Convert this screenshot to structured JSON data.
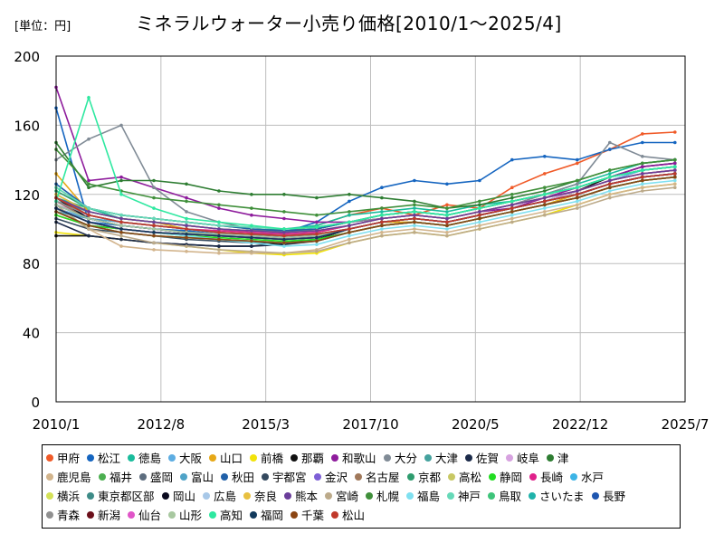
{
  "unit_label": "[単位：円]",
  "chart_data": {
    "type": "line",
    "title": "ミネラルウォーター小売り価格[2010/1～2025/4]",
    "xlabel": "",
    "ylabel": "",
    "x_ticks": [
      "2010/1",
      "2012/8",
      "2015/3",
      "2017/10",
      "2020/5",
      "2022/12",
      "2025/7"
    ],
    "xlim": [
      "2010/1",
      "2025/7"
    ],
    "ylim": [
      0,
      200
    ],
    "y_ticks": [
      0,
      40,
      80,
      120,
      160,
      200
    ],
    "grid": true,
    "legend_position": "bottom",
    "series": [
      {
        "name": "甲府",
        "color": "#f05a28",
        "values": [
          108,
          102,
          100,
          98,
          97,
          96,
          97,
          98,
          102,
          108,
          112,
          108,
          114,
          112,
          124,
          132,
          138,
          146,
          155,
          156
        ]
      },
      {
        "name": "松江",
        "color": "#1565c0",
        "values": [
          170,
          104,
          102,
          100,
          99,
          97,
          96,
          98,
          104,
          116,
          124,
          128,
          126,
          128,
          140,
          142,
          140,
          146,
          150,
          150
        ]
      },
      {
        "name": "徳島",
        "color": "#1abc9c",
        "values": [
          118,
          112,
          106,
          104,
          102,
          100,
          99,
          100,
          102,
          108,
          110,
          112,
          110,
          114,
          116,
          120,
          126,
          132,
          138,
          140
        ]
      },
      {
        "name": "大阪",
        "color": "#5dade2",
        "values": [
          112,
          106,
          104,
          102,
          100,
          98,
          97,
          98,
          100,
          104,
          106,
          108,
          106,
          110,
          114,
          118,
          122,
          128,
          134,
          136
        ]
      },
      {
        "name": "山口",
        "color": "#e6a817",
        "values": [
          132,
          110,
          106,
          104,
          100,
          98,
          96,
          95,
          96,
          100,
          104,
          104,
          102,
          106,
          110,
          114,
          120,
          126,
          130,
          132
        ]
      },
      {
        "name": "前橋",
        "color": "#f2e30a",
        "values": [
          98,
          96,
          94,
          92,
          90,
          88,
          86,
          85,
          86,
          92,
          96,
          98,
          96,
          100,
          104,
          108,
          114,
          120,
          124,
          126
        ]
      },
      {
        "name": "那覇",
        "color": "#111111",
        "values": [
          96,
          96,
          94,
          92,
          91,
          90,
          90,
          92,
          94,
          100,
          104,
          106,
          104,
          108,
          112,
          116,
          122,
          130,
          136,
          138
        ]
      },
      {
        "name": "和歌山",
        "color": "#8e1c9c",
        "values": [
          182,
          128,
          130,
          124,
          118,
          112,
          108,
          106,
          104,
          104,
          106,
          108,
          106,
          110,
          112,
          118,
          124,
          130,
          136,
          138
        ]
      },
      {
        "name": "大分",
        "color": "#808b96",
        "values": [
          140,
          152,
          160,
          124,
          110,
          104,
          100,
          98,
          100,
          104,
          106,
          108,
          106,
          110,
          114,
          120,
          126,
          150,
          142,
          140
        ]
      },
      {
        "name": "大津",
        "color": "#45a29e",
        "values": [
          116,
          110,
          106,
          104,
          102,
          100,
          99,
          98,
          100,
          104,
          108,
          110,
          108,
          112,
          116,
          120,
          124,
          130,
          134,
          136
        ]
      },
      {
        "name": "佐賀",
        "color": "#1b2a49",
        "values": [
          104,
          96,
          94,
          92,
          91,
          90,
          90,
          91,
          93,
          98,
          102,
          104,
          102,
          106,
          110,
          114,
          118,
          124,
          128,
          130
        ]
      },
      {
        "name": "岐阜",
        "color": "#d7a2e0",
        "values": [
          114,
          108,
          104,
          102,
          100,
          98,
          96,
          95,
          96,
          100,
          104,
          106,
          104,
          108,
          112,
          116,
          122,
          128,
          132,
          134
        ]
      },
      {
        "name": "津",
        "color": "#2e7d32",
        "values": [
          150,
          124,
          128,
          128,
          126,
          122,
          120,
          120,
          118,
          120,
          118,
          116,
          112,
          114,
          118,
          122,
          128,
          134,
          138,
          140
        ]
      },
      {
        "name": "鹿児島",
        "color": "#d2b48c",
        "values": [
          112,
          100,
          90,
          88,
          87,
          86,
          86,
          86,
          88,
          94,
          98,
          100,
          98,
          102,
          106,
          110,
          114,
          120,
          124,
          126
        ]
      },
      {
        "name": "福井",
        "color": "#4caf50",
        "values": [
          124,
          112,
          108,
          106,
          104,
          102,
          100,
          99,
          100,
          104,
          108,
          110,
          108,
          112,
          116,
          120,
          124,
          130,
          134,
          136
        ]
      },
      {
        "name": "盛岡",
        "color": "#5d6d7e",
        "values": [
          120,
          110,
          106,
          104,
          102,
          100,
          98,
          97,
          98,
          102,
          106,
          108,
          106,
          110,
          114,
          118,
          122,
          128,
          132,
          134
        ]
      },
      {
        "name": "富山",
        "color": "#4fa3c7",
        "values": [
          110,
          106,
          104,
          102,
          100,
          98,
          97,
          96,
          97,
          100,
          104,
          106,
          104,
          108,
          112,
          116,
          120,
          126,
          130,
          132
        ]
      },
      {
        "name": "秋田",
        "color": "#2060a8",
        "values": [
          126,
          112,
          108,
          106,
          104,
          102,
          100,
          99,
          100,
          104,
          108,
          110,
          108,
          112,
          116,
          120,
          124,
          130,
          134,
          136
        ]
      },
      {
        "name": "宇都宮",
        "color": "#34495e",
        "values": [
          106,
          100,
          98,
          96,
          94,
          93,
          92,
          92,
          94,
          98,
          102,
          104,
          102,
          106,
          110,
          114,
          118,
          124,
          128,
          130
        ]
      },
      {
        "name": "金沢",
        "color": "#7d5fd6",
        "values": [
          118,
          108,
          104,
          102,
          100,
          98,
          96,
          95,
          96,
          100,
          104,
          106,
          104,
          108,
          112,
          116,
          120,
          126,
          130,
          132
        ]
      },
      {
        "name": "名古屋",
        "color": "#a0785a",
        "values": [
          116,
          106,
          102,
          100,
          98,
          96,
          95,
          94,
          95,
          100,
          104,
          106,
          104,
          108,
          112,
          116,
          120,
          126,
          130,
          132
        ]
      },
      {
        "name": "京都",
        "color": "#2e9c6e",
        "values": [
          122,
          112,
          108,
          106,
          104,
          102,
          101,
          100,
          101,
          104,
          108,
          110,
          108,
          112,
          116,
          120,
          124,
          130,
          134,
          136
        ]
      },
      {
        "name": "高松",
        "color": "#c8c864",
        "values": [
          112,
          104,
          100,
          98,
          96,
          94,
          93,
          92,
          93,
          98,
          102,
          104,
          102,
          106,
          110,
          114,
          118,
          124,
          128,
          130
        ]
      },
      {
        "name": "静岡",
        "color": "#22dd22",
        "values": [
          108,
          102,
          100,
          98,
          96,
          95,
          94,
          93,
          94,
          98,
          102,
          104,
          102,
          106,
          110,
          114,
          118,
          124,
          128,
          130
        ]
      },
      {
        "name": "長崎",
        "color": "#e0208a",
        "values": [
          116,
          108,
          104,
          102,
          100,
          99,
          98,
          97,
          98,
          102,
          106,
          108,
          106,
          110,
          114,
          118,
          122,
          128,
          132,
          134
        ]
      },
      {
        "name": "水戸",
        "color": "#3cb4e6",
        "values": [
          112,
          104,
          100,
          98,
          97,
          96,
          95,
          94,
          95,
          100,
          104,
          106,
          104,
          108,
          112,
          116,
          120,
          126,
          130,
          132
        ]
      },
      {
        "name": "横浜",
        "color": "#d4e157",
        "values": [
          110,
          102,
          98,
          96,
          95,
          94,
          93,
          92,
          93,
          98,
          102,
          104,
          102,
          106,
          110,
          114,
          118,
          124,
          128,
          130
        ]
      },
      {
        "name": "東京都区部",
        "color": "#3d8b87",
        "values": [
          114,
          106,
          102,
          100,
          98,
          97,
          96,
          95,
          96,
          100,
          104,
          106,
          104,
          108,
          112,
          116,
          120,
          126,
          130,
          132
        ]
      },
      {
        "name": "岡山",
        "color": "#0a0a1e",
        "values": [
          118,
          106,
          102,
          100,
          98,
          97,
          96,
          95,
          96,
          100,
          104,
          106,
          104,
          108,
          112,
          116,
          120,
          126,
          130,
          132
        ]
      },
      {
        "name": "広島",
        "color": "#a8c8e8",
        "values": [
          112,
          104,
          100,
          98,
          97,
          96,
          95,
          94,
          95,
          100,
          104,
          106,
          104,
          108,
          112,
          116,
          120,
          126,
          130,
          132
        ]
      },
      {
        "name": "奈良",
        "color": "#e8c040",
        "values": [
          120,
          110,
          106,
          104,
          102,
          100,
          99,
          98,
          99,
          102,
          106,
          108,
          106,
          110,
          114,
          118,
          122,
          128,
          132,
          134
        ]
      },
      {
        "name": "熊本",
        "color": "#6a3d9a",
        "values": [
          118,
          110,
          106,
          104,
          102,
          100,
          99,
          98,
          99,
          102,
          106,
          108,
          106,
          110,
          114,
          118,
          122,
          128,
          132,
          134
        ]
      },
      {
        "name": "宮崎",
        "color": "#bcaa8a",
        "values": [
          114,
          100,
          96,
          92,
          90,
          88,
          87,
          86,
          87,
          92,
          96,
          98,
          96,
          100,
          104,
          108,
          112,
          118,
          122,
          124
        ]
      },
      {
        "name": "札幌",
        "color": "#3f8f3a",
        "values": [
          146,
          126,
          122,
          118,
          116,
          114,
          112,
          110,
          108,
          110,
          112,
          114,
          112,
          116,
          120,
          124,
          128,
          134,
          138,
          140
        ]
      },
      {
        "name": "福島",
        "color": "#7fe0f0",
        "values": [
          112,
          104,
          100,
          98,
          96,
          94,
          92,
          90,
          91,
          96,
          100,
          102,
          100,
          104,
          108,
          112,
          116,
          122,
          126,
          128
        ]
      },
      {
        "name": "神戸",
        "color": "#66d9b8",
        "values": [
          124,
          112,
          108,
          106,
          104,
          102,
          101,
          100,
          101,
          104,
          108,
          110,
          108,
          112,
          116,
          120,
          124,
          130,
          134,
          136
        ]
      },
      {
        "name": "鳥取",
        "color": "#3ec47a",
        "values": [
          118,
          108,
          104,
          102,
          100,
          98,
          97,
          96,
          97,
          100,
          104,
          106,
          104,
          108,
          112,
          116,
          120,
          126,
          130,
          132
        ]
      },
      {
        "name": "さいたま",
        "color": "#20b2aa",
        "values": [
          110,
          102,
          98,
          96,
          95,
          94,
          93,
          92,
          93,
          98,
          102,
          104,
          102,
          106,
          110,
          114,
          118,
          124,
          128,
          130
        ]
      },
      {
        "name": "長野",
        "color": "#1e56b0",
        "values": [
          114,
          106,
          102,
          100,
          98,
          97,
          96,
          95,
          96,
          100,
          104,
          106,
          104,
          108,
          112,
          116,
          120,
          126,
          130,
          132
        ]
      },
      {
        "name": "青森",
        "color": "#909090",
        "values": [
          116,
          108,
          104,
          102,
          100,
          98,
          97,
          96,
          97,
          100,
          104,
          106,
          104,
          108,
          112,
          116,
          120,
          126,
          130,
          132
        ]
      },
      {
        "name": "新潟",
        "color": "#6b0f1a",
        "values": [
          112,
          104,
          100,
          98,
          97,
          96,
          95,
          94,
          95,
          100,
          104,
          106,
          104,
          108,
          112,
          116,
          120,
          126,
          130,
          132
        ]
      },
      {
        "name": "仙台",
        "color": "#e055c8",
        "values": [
          112,
          104,
          100,
          98,
          97,
          96,
          95,
          94,
          95,
          100,
          104,
          106,
          104,
          108,
          112,
          116,
          120,
          126,
          130,
          132
        ]
      },
      {
        "name": "山形",
        "color": "#a8c8a0",
        "values": [
          114,
          106,
          102,
          100,
          98,
          97,
          96,
          95,
          96,
          100,
          104,
          106,
          104,
          108,
          112,
          116,
          120,
          126,
          130,
          132
        ]
      },
      {
        "name": "高知",
        "color": "#2ee8a0",
        "values": [
          116,
          176,
          120,
          112,
          106,
          104,
          102,
          100,
          101,
          104,
          108,
          110,
          108,
          112,
          116,
          120,
          124,
          130,
          134,
          136
        ]
      },
      {
        "name": "福岡",
        "color": "#123a5c",
        "values": [
          112,
          104,
          100,
          98,
          97,
          96,
          95,
          94,
          95,
          100,
          104,
          106,
          104,
          108,
          112,
          116,
          120,
          126,
          130,
          132
        ]
      },
      {
        "name": "千葉",
        "color": "#8b4513",
        "values": [
          110,
          102,
          98,
          96,
          95,
          94,
          93,
          92,
          93,
          98,
          102,
          104,
          102,
          106,
          110,
          114,
          118,
          124,
          128,
          130
        ]
      },
      {
        "name": "松山",
        "color": "#c0392b",
        "values": [
          118,
          108,
          104,
          102,
          100,
          98,
          97,
          96,
          97,
          100,
          104,
          106,
          104,
          108,
          112,
          116,
          120,
          126,
          130,
          132
        ]
      }
    ]
  }
}
